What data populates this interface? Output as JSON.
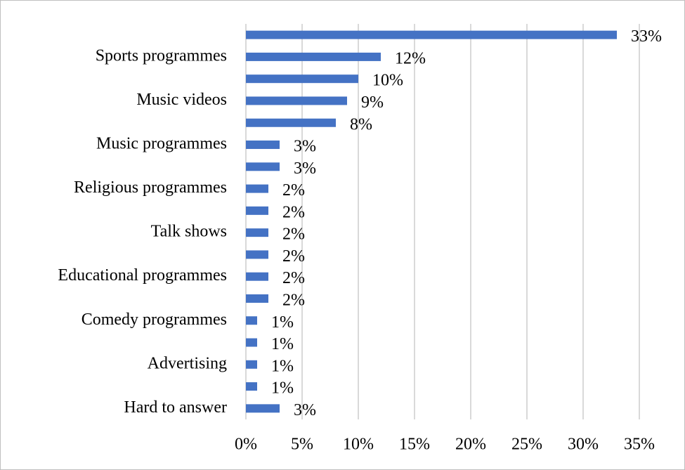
{
  "chart_data": {
    "type": "bar",
    "orientation": "horizontal",
    "categories": [
      null,
      "Sports programmes",
      null,
      "Music videos",
      null,
      "Music programmes",
      null,
      "Religious programmes",
      null,
      "Talk shows",
      null,
      "Educational programmes",
      null,
      "Comedy programmes",
      null,
      "Advertising",
      null,
      "Hard to answer"
    ],
    "values": [
      33,
      12,
      10,
      9,
      8,
      3,
      3,
      2,
      2,
      2,
      2,
      2,
      2,
      1,
      1,
      1,
      1,
      3
    ],
    "value_labels": [
      "33%",
      "12%",
      "10%",
      "9%",
      "8%",
      "3%",
      "3%",
      "2%",
      "2%",
      "2%",
      "2%",
      "2%",
      "2%",
      "1%",
      "1%",
      "1%",
      "1%",
      "3%"
    ],
    "color": "#4472c4",
    "xlim": [
      0,
      35
    ],
    "xticks": [
      {
        "value": 0,
        "label": "0%"
      },
      {
        "value": 5,
        "label": "5%"
      },
      {
        "value": 10,
        "label": "10%"
      },
      {
        "value": 15,
        "label": "15%"
      },
      {
        "value": 20,
        "label": "20%"
      },
      {
        "value": 25,
        "label": "25%"
      },
      {
        "value": 30,
        "label": "30%"
      },
      {
        "value": 35,
        "label": "35%"
      }
    ],
    "grid": true
  }
}
